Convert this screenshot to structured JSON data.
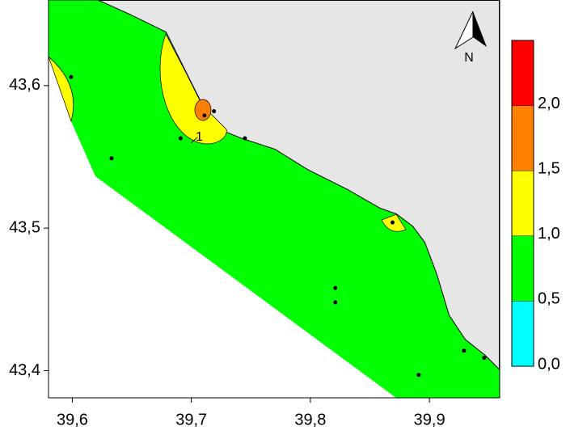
{
  "map": {
    "north_label": "N",
    "annotation": "1",
    "xlim": [
      39.58,
      39.959
    ],
    "ylim": [
      43.381,
      43.66
    ],
    "xticks": [
      {
        "value": 39.6,
        "label": "39,6"
      },
      {
        "value": 39.7,
        "label": "39,7"
      },
      {
        "value": 39.8,
        "label": "39,8"
      },
      {
        "value": 39.9,
        "label": "39,9"
      }
    ],
    "yticks": [
      {
        "value": 43.4,
        "label": "43,4"
      },
      {
        "value": 43.5,
        "label": "43,5"
      },
      {
        "value": 43.6,
        "label": "43,6"
      }
    ],
    "stations": {
      "lon": [
        39.599,
        39.633,
        39.691,
        39.711,
        39.719,
        39.745,
        39.821,
        39.821,
        39.869,
        39.891,
        39.929,
        39.946
      ],
      "lat": [
        43.606,
        43.549,
        43.563,
        43.579,
        43.582,
        43.563,
        43.458,
        43.448,
        43.504,
        43.397,
        43.414,
        43.409
      ]
    },
    "colorbar": {
      "lim": [
        0,
        2.5
      ],
      "ticks": [
        {
          "value": 0,
          "label": "0,0"
        },
        {
          "value": 0.5,
          "label": "0,5"
        },
        {
          "value": 1,
          "label": "1,0"
        },
        {
          "value": 1.5,
          "label": "1,5"
        },
        {
          "value": 2,
          "label": "2,0"
        }
      ],
      "colors": [
        "#00ffff",
        "#00ff00",
        "#ffff00",
        "#ff8000",
        "#ff0000"
      ]
    }
  }
}
